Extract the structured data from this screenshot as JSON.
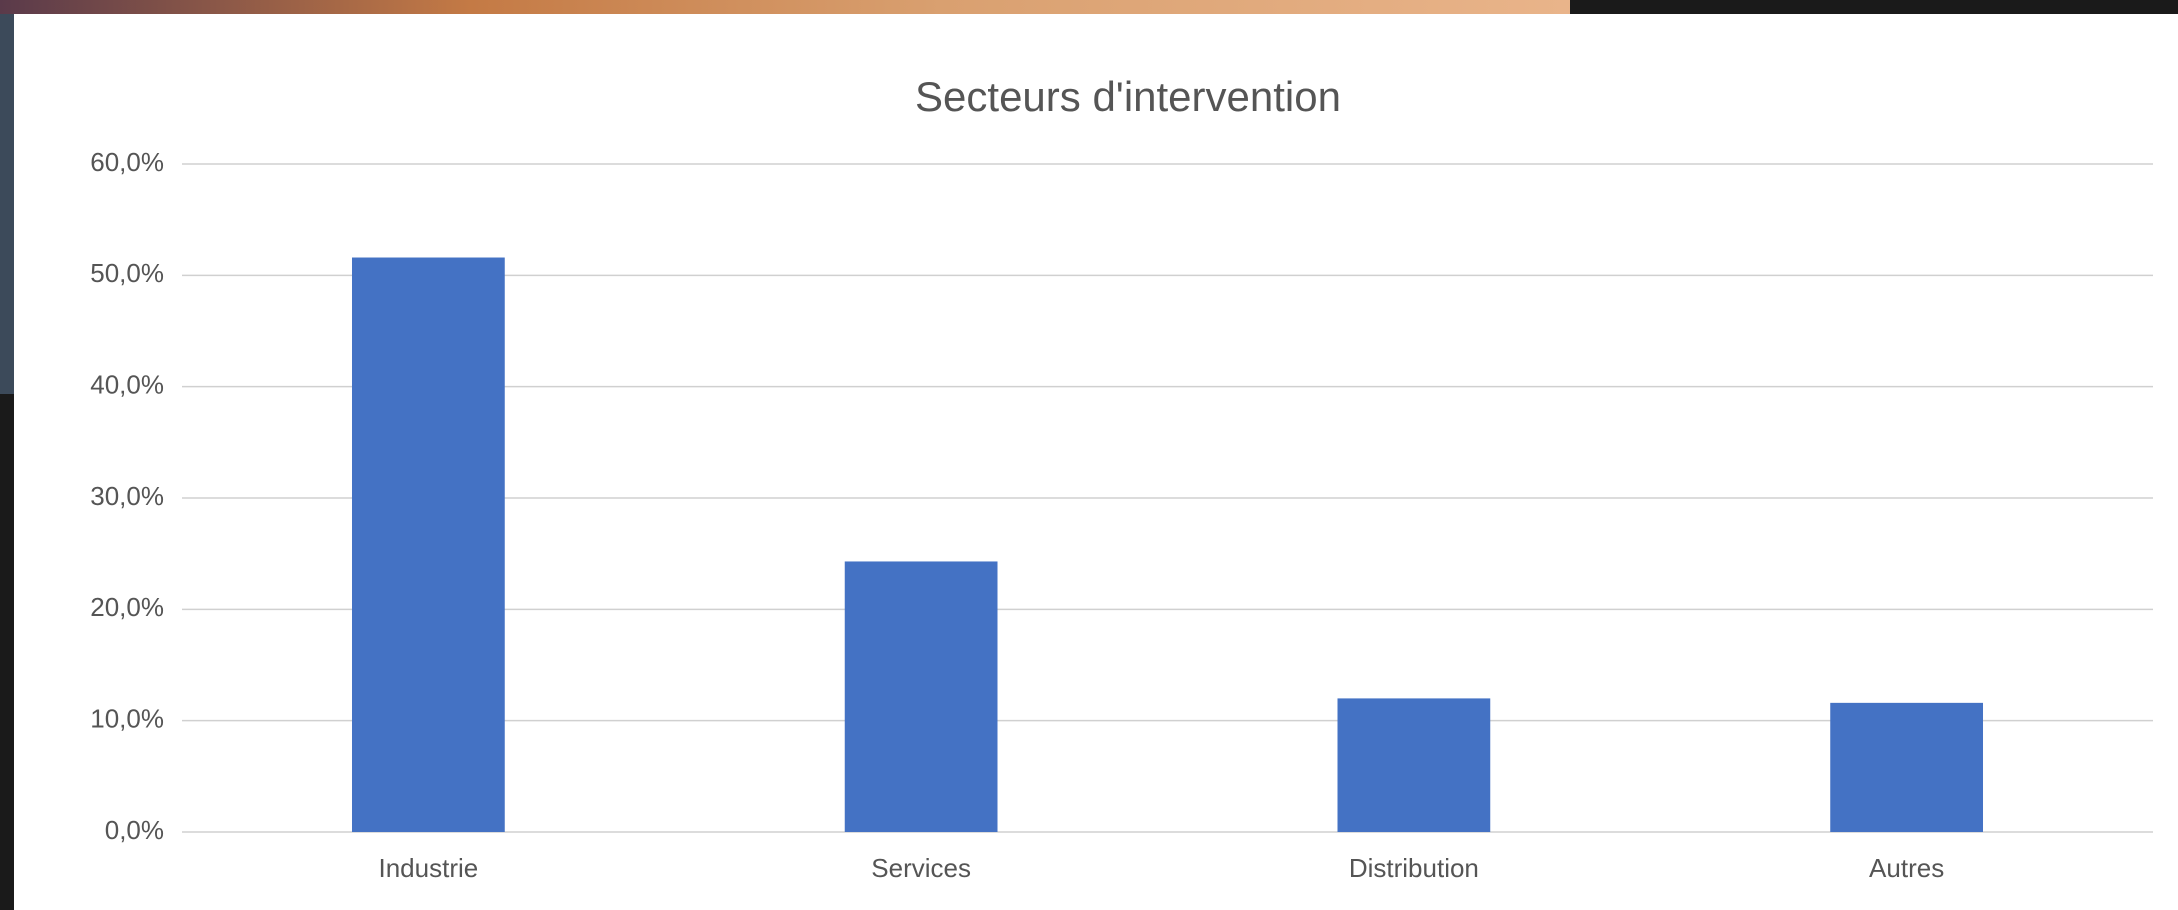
{
  "chart_data": {
    "type": "bar",
    "title": "Secteurs d'intervention",
    "categories": [
      "Industrie",
      "Services",
      "Distribution",
      "Autres"
    ],
    "values": [
      51.6,
      24.3,
      12.0,
      11.6
    ],
    "color": "#4472c4",
    "ylim": [
      0,
      60
    ],
    "yticks": [
      {
        "value": 0,
        "label": "0,0%"
      },
      {
        "value": 10,
        "label": "10,0%"
      },
      {
        "value": 20,
        "label": "20,0%"
      },
      {
        "value": 30,
        "label": "30,0%"
      },
      {
        "value": 40,
        "label": "40,0%"
      },
      {
        "value": 50,
        "label": "50,0%"
      },
      {
        "value": 60,
        "label": "60,0%"
      }
    ],
    "grid": true
  }
}
